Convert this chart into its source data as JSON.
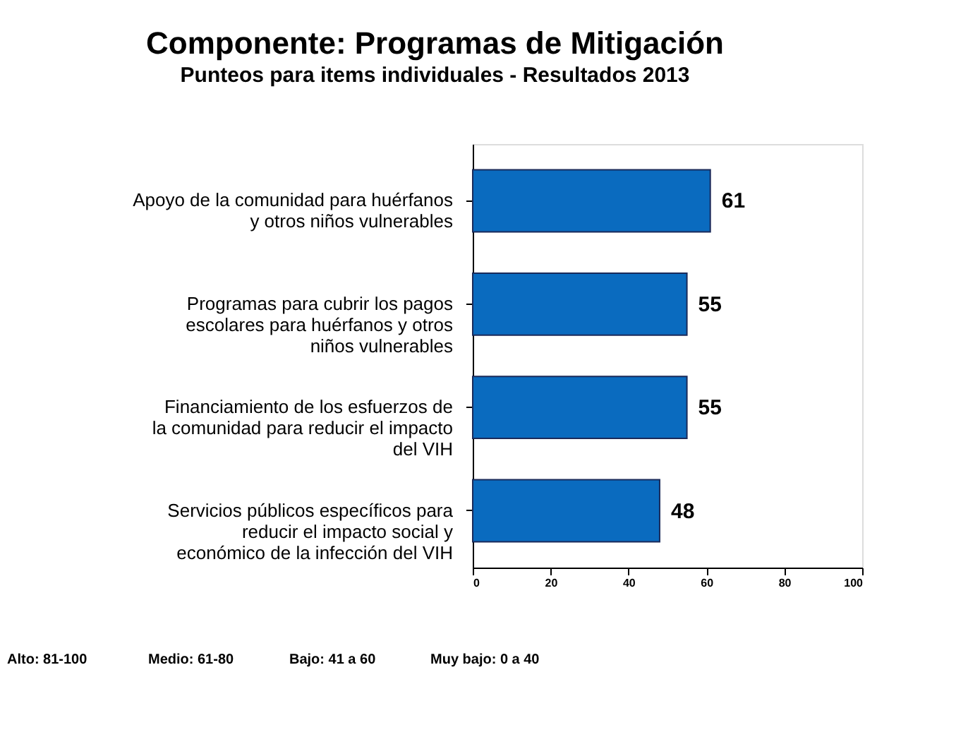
{
  "chart_data": {
    "type": "bar",
    "orientation": "horizontal",
    "title": "Componente: Programas de Mitigación",
    "subtitle": "Punteos para items individuales - Resultados 2013",
    "categories": [
      "Apoyo de la comunidad para huérfanos y otros niños vulnerables",
      "Programas para cubrir los pagos escolares para huérfanos y otros niños vulnerables",
      "Financiamiento de los esfuerzos de la comunidad para reducir el impacto del VIH",
      "Servicios públicos específicos para reducir el impacto social y económico de la infección del VIH"
    ],
    "values": [
      61,
      55,
      55,
      48
    ],
    "color": "#0a6bbf",
    "data_labels": true,
    "xlim": [
      0,
      100
    ],
    "xticks": [
      0,
      20,
      40,
      60,
      80,
      100
    ],
    "grid": false,
    "annotations": [
      "Alto:  81-100",
      "Medio: 61-80",
      "Bajo:  41 a 60",
      "Muy bajo:  0 a 40"
    ]
  }
}
